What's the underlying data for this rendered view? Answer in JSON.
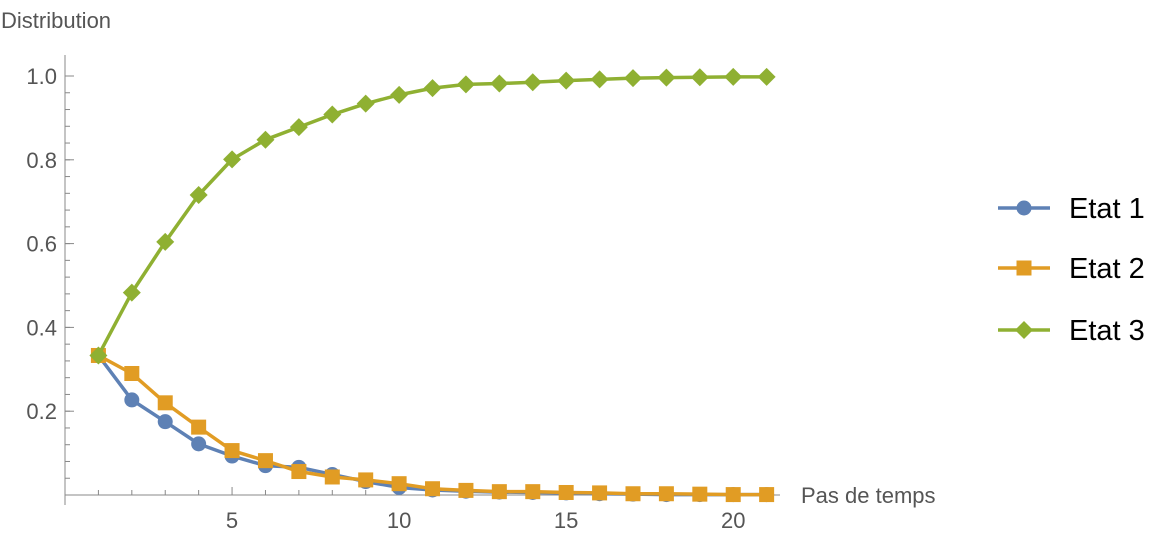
{
  "chart_data": {
    "type": "line",
    "xlabel": "Pas de temps",
    "ylabel": "Distribution",
    "xlim": [
      0,
      21.4
    ],
    "ylim": [
      0,
      1.0
    ],
    "x_ticks": [
      5,
      10,
      15,
      20
    ],
    "y_ticks": [
      0.2,
      0.4,
      0.6,
      0.8,
      1.0
    ],
    "y_tick_labels": [
      "0.2",
      "0.4",
      "0.6",
      "0.8",
      "1.0"
    ],
    "x_tick_labels": [
      "5",
      "10",
      "15",
      "20"
    ],
    "grid": false,
    "legend_position": "right",
    "x": [
      1,
      2,
      3,
      4,
      5,
      6,
      7,
      8,
      9,
      10,
      11,
      12,
      13,
      14,
      15,
      16,
      17,
      18,
      19,
      20,
      21
    ],
    "series": [
      {
        "name": "Etat 1",
        "color": "#5E81B5",
        "marker": "circle",
        "values": [
          0.333,
          0.227,
          0.175,
          0.122,
          0.093,
          0.07,
          0.066,
          0.049,
          0.032,
          0.018,
          0.012,
          0.009,
          0.007,
          0.006,
          0.005,
          0.003,
          0.002,
          0.001,
          0.001,
          0.001,
          0.001
        ]
      },
      {
        "name": "Etat 2",
        "color": "#E19C24",
        "marker": "square",
        "values": [
          0.333,
          0.29,
          0.22,
          0.162,
          0.106,
          0.082,
          0.056,
          0.043,
          0.036,
          0.027,
          0.015,
          0.011,
          0.008,
          0.008,
          0.006,
          0.005,
          0.003,
          0.003,
          0.002,
          0.001,
          0.001
        ]
      },
      {
        "name": "Etat 3",
        "color": "#8FB032",
        "marker": "diamond",
        "values": [
          0.333,
          0.483,
          0.604,
          0.716,
          0.801,
          0.848,
          0.878,
          0.908,
          0.934,
          0.955,
          0.971,
          0.98,
          0.982,
          0.985,
          0.989,
          0.992,
          0.995,
          0.996,
          0.997,
          0.998,
          0.998
        ]
      }
    ]
  }
}
